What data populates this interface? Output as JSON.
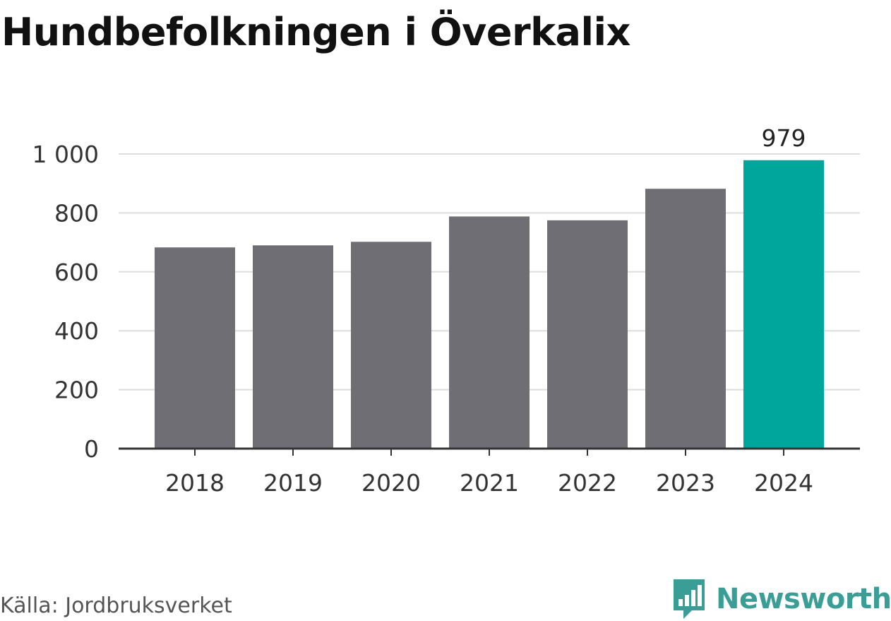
{
  "title": "Hundbefolkningen i Överkalix",
  "source": "Källa: Jordbruksverket",
  "brand": {
    "name": "Newsworthy",
    "icon": "newsworthy-bar-chart-logo-icon",
    "color": "#3a9e96"
  },
  "chart_data": {
    "type": "bar",
    "categories": [
      "2018",
      "2019",
      "2020",
      "2021",
      "2022",
      "2023",
      "2024"
    ],
    "values": [
      683,
      690,
      702,
      788,
      775,
      882,
      979
    ],
    "ylim": [
      0,
      1000
    ],
    "yticks": [
      0,
      200,
      400,
      600,
      800,
      1000
    ],
    "ytick_labels": [
      "0",
      "200",
      "400",
      "600",
      "800",
      "1 000"
    ],
    "grid": true,
    "colors": {
      "default_bar": "#6f6e74",
      "highlight_bar": "#00a59b",
      "grid": "#dddddd",
      "axis": "#333333"
    },
    "highlight_index": 6,
    "data_labels": [
      {
        "index": 6,
        "text": "979"
      }
    ]
  }
}
